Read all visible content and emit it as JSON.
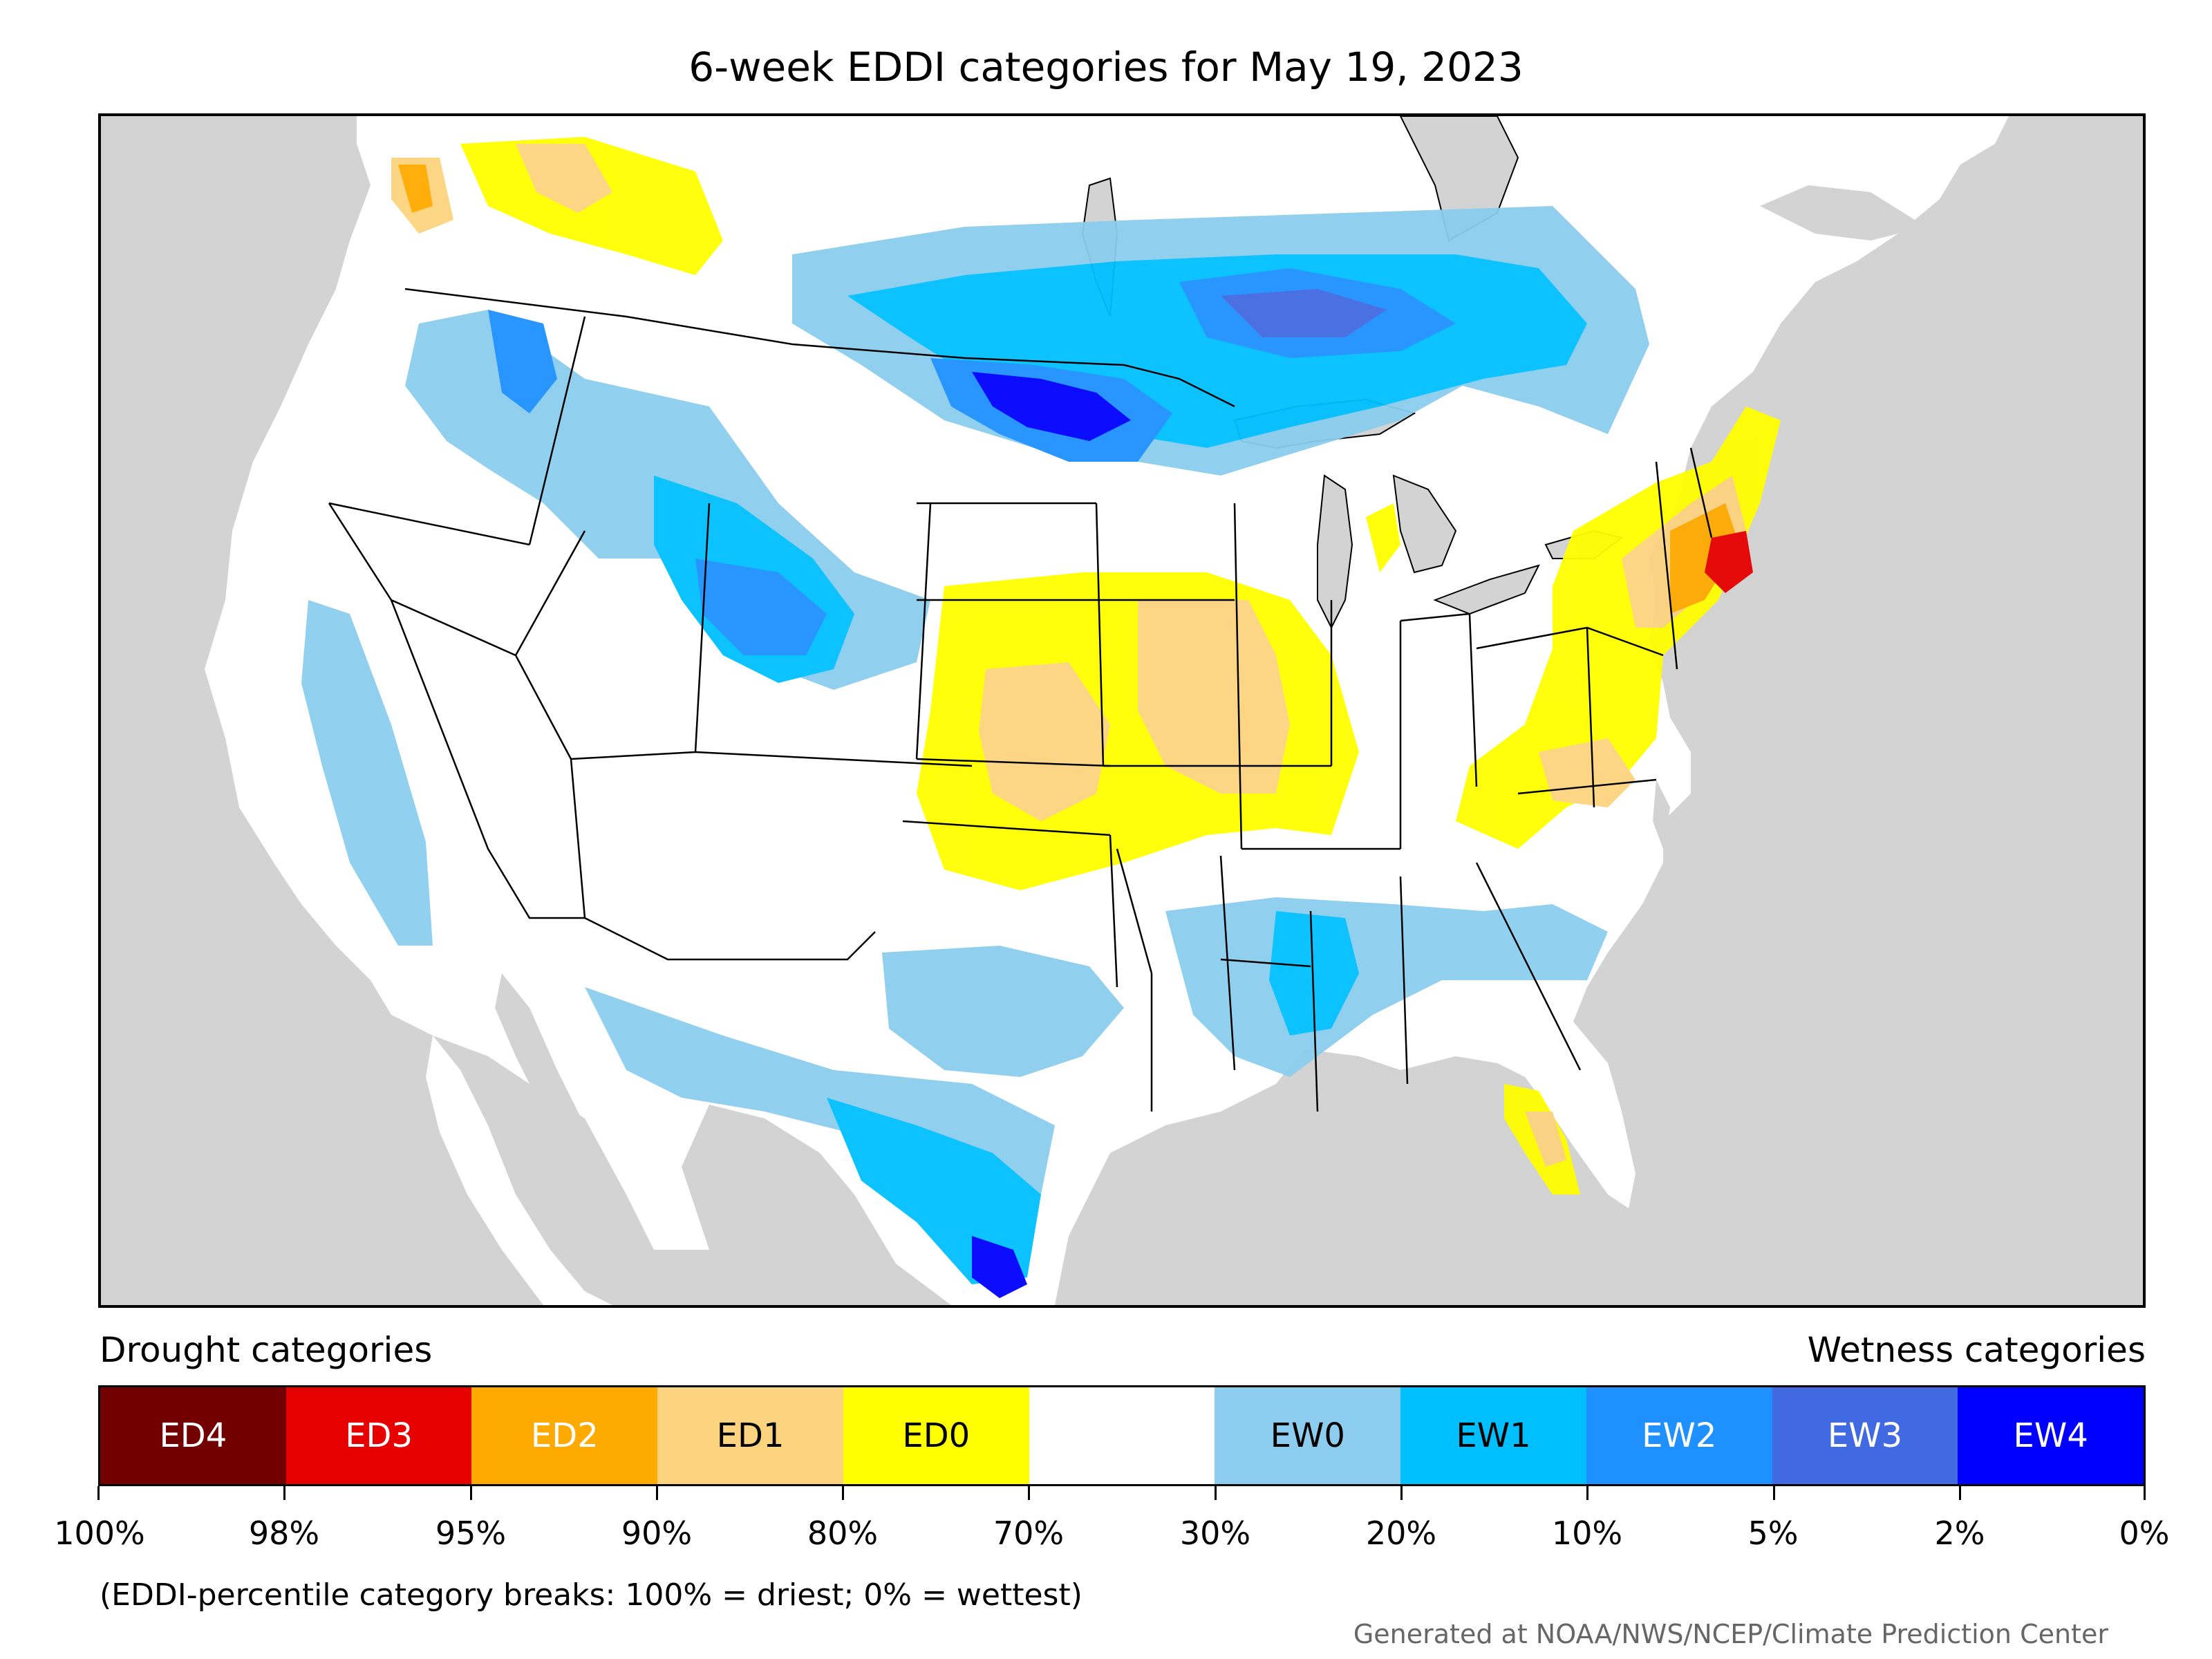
{
  "title": "6-week EDDI categories for May 19, 2023",
  "legend": {
    "drought_heading": "Drought categories",
    "wetness_heading": "Wetness categories",
    "categories": [
      {
        "label": "ED4",
        "color": "#720000",
        "text_color": "#ffffff"
      },
      {
        "label": "ED3",
        "color": "#e60000",
        "text_color": "#ffffff"
      },
      {
        "label": "ED2",
        "color": "#ffaa00",
        "text_color": "#ffffff"
      },
      {
        "label": "ED1",
        "color": "#fcd37f",
        "text_color": "#000000"
      },
      {
        "label": "ED0",
        "color": "#ffff00",
        "text_color": "#000000"
      },
      {
        "label": "",
        "color": "#ffffff",
        "text_color": "#000000"
      },
      {
        "label": "EW0",
        "color": "#8ccdef",
        "text_color": "#000000"
      },
      {
        "label": "EW1",
        "color": "#00bfff",
        "text_color": "#000000"
      },
      {
        "label": "EW2",
        "color": "#1e90ff",
        "text_color": "#ffffff"
      },
      {
        "label": "EW3",
        "color": "#4169e1",
        "text_color": "#ffffff"
      },
      {
        "label": "EW4",
        "color": "#0000ff",
        "text_color": "#ffffff"
      }
    ],
    "breaks": [
      "100%",
      "98%",
      "95%",
      "90%",
      "80%",
      "70%",
      "30%",
      "20%",
      "10%",
      "5%",
      "2%",
      "0%"
    ]
  },
  "note": "(EDDI-percentile category breaks: 100% = driest; 0% = wettest)",
  "credit": "Generated at NOAA/NWS/NCEP/Climate Prediction Center",
  "colors": {
    "water": "#d3d3d3",
    "land": "#ffffff",
    "ED3": "#e60000",
    "ED2": "#ffaa00",
    "ED1": "#fcd37f",
    "ED0": "#ffff00",
    "EW0": "#8ccdef",
    "EW1": "#00bfff",
    "EW2": "#1e90ff",
    "EW3": "#4169e1",
    "EW4": "#0000ff"
  }
}
